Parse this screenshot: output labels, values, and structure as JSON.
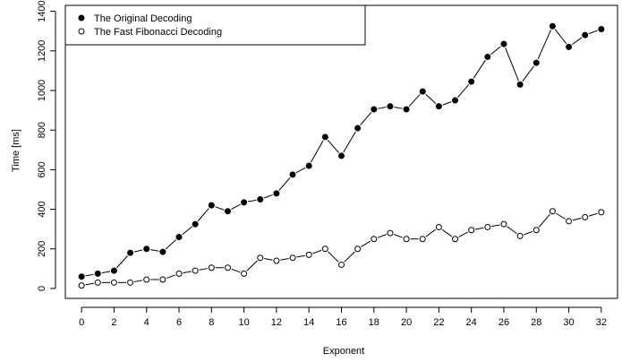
{
  "chart_data": {
    "type": "line",
    "title": "",
    "xlabel": "Exponent",
    "ylabel": "Time [ms]",
    "xlim": [
      -1,
      33
    ],
    "ylim": [
      -50,
      1430
    ],
    "x_ticks": [
      0,
      2,
      4,
      6,
      8,
      10,
      12,
      14,
      16,
      18,
      20,
      22,
      24,
      26,
      28,
      30,
      32
    ],
    "y_ticks": [
      0,
      200,
      400,
      600,
      800,
      1000,
      1200,
      1400
    ],
    "grid": false,
    "legend_position": "top-left",
    "x": [
      0,
      1,
      2,
      3,
      4,
      5,
      6,
      7,
      8,
      9,
      10,
      11,
      12,
      13,
      14,
      15,
      16,
      17,
      18,
      19,
      20,
      21,
      22,
      23,
      24,
      25,
      26,
      27,
      28,
      29,
      30,
      31,
      32
    ],
    "series": [
      {
        "name": "The Original Decoding",
        "marker": "filled-circle",
        "values": [
          60,
          75,
          90,
          180,
          200,
          185,
          260,
          325,
          420,
          390,
          435,
          450,
          480,
          575,
          620,
          765,
          670,
          810,
          905,
          920,
          905,
          995,
          920,
          950,
          1045,
          1170,
          1235,
          1030,
          1140,
          1325,
          1220,
          1280,
          1310
        ]
      },
      {
        "name": "The Fast Fibonacci Decoding",
        "marker": "open-circle",
        "values": [
          15,
          30,
          30,
          30,
          45,
          45,
          75,
          90,
          105,
          105,
          75,
          155,
          140,
          155,
          170,
          200,
          120,
          200,
          250,
          280,
          250,
          250,
          310,
          250,
          295,
          310,
          325,
          265,
          295,
          390,
          340,
          360,
          385
        ]
      }
    ]
  }
}
